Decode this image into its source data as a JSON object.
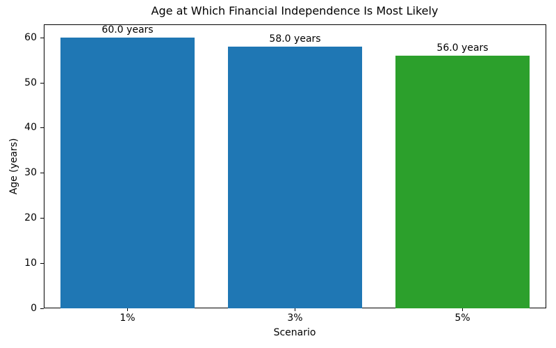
{
  "chart_data": {
    "type": "bar",
    "title": "Age at Which Financial Independence Is Most Likely",
    "xlabel": "Scenario",
    "ylabel": "Age (years)",
    "categories": [
      "1%",
      "3%",
      "5%"
    ],
    "values": [
      60.0,
      58.0,
      56.0
    ],
    "bar_labels": [
      "60.0 years",
      "58.0 years",
      "56.0 years"
    ],
    "bar_colors": [
      "#1f77b4",
      "#1f77b4",
      "#2ca02c"
    ],
    "ylim": [
      0,
      63
    ],
    "yticks": [
      0,
      10,
      20,
      30,
      40,
      50,
      60
    ],
    "grid": false,
    "legend": "none",
    "background_color": "#ffffff",
    "text_color": "#000000"
  }
}
